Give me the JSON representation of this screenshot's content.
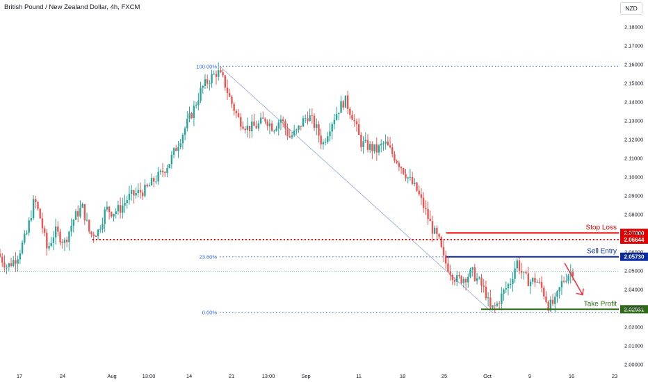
{
  "header": {
    "title": "British Pound / New Zealand Dollar, 4h, FXCM",
    "currency_button": "NZD"
  },
  "chart_data": {
    "type": "candlestick",
    "symbol": "British Pound / New Zealand Dollar",
    "timeframe": "4h",
    "source": "FXCM",
    "ylim": [
      1.995,
      2.187
    ],
    "y_ticks": [
      "2.18000",
      "2.17000",
      "2.16000",
      "2.15000",
      "2.14000",
      "2.13000",
      "2.12000",
      "2.11000",
      "2.10000",
      "2.09000",
      "2.08000",
      "2.07000",
      "2.06000",
      "2.05000",
      "2.04000",
      "2.03000",
      "2.02000",
      "2.01000",
      "2.00000"
    ],
    "x_ticks": [
      "17",
      "24",
      "Aug",
      "13:00",
      "14",
      "21",
      "13:00",
      "Sep",
      "11",
      "18",
      "25",
      "Oct",
      "9",
      "16",
      "23"
    ],
    "price_path": [
      [
        0,
        2.059
      ],
      [
        1.2,
        2.052
      ],
      [
        2.4,
        2.057
      ],
      [
        3.6,
        2.069
      ],
      [
        4.6,
        2.088
      ],
      [
        5.4,
        2.077
      ],
      [
        6.2,
        2.061
      ],
      [
        7.2,
        2.071
      ],
      [
        8.4,
        2.065
      ],
      [
        9.6,
        2.078
      ],
      [
        10.6,
        2.084
      ],
      [
        11.6,
        2.069
      ],
      [
        12.6,
        2.071
      ],
      [
        13.6,
        2.083
      ],
      [
        14.4,
        2.081
      ],
      [
        15.4,
        2.083
      ],
      [
        16.4,
        2.089
      ],
      [
        17.4,
        2.091
      ],
      [
        18.6,
        2.093
      ],
      [
        19.6,
        2.098
      ],
      [
        20.4,
        2.101
      ],
      [
        21.6,
        2.108
      ],
      [
        23,
        2.121
      ],
      [
        24.6,
        2.136
      ],
      [
        25.6,
        2.147
      ],
      [
        26.6,
        2.152
      ],
      [
        27.6,
        2.156
      ],
      [
        28.4,
        2.151
      ],
      [
        29.2,
        2.141
      ],
      [
        30.2,
        2.131
      ],
      [
        31.4,
        2.126
      ],
      [
        32.6,
        2.127
      ],
      [
        33.6,
        2.131
      ],
      [
        34.6,
        2.126
      ],
      [
        35.6,
        2.131
      ],
      [
        36.6,
        2.121
      ],
      [
        37.6,
        2.124
      ],
      [
        38.2,
        2.129
      ],
      [
        39,
        2.133
      ],
      [
        40,
        2.126
      ],
      [
        40.8,
        2.117
      ],
      [
        41.8,
        2.128
      ],
      [
        42.8,
        2.136
      ],
      [
        43.6,
        2.141
      ],
      [
        44.6,
        2.132
      ],
      [
        45.6,
        2.118
      ],
      [
        46.6,
        2.116
      ],
      [
        47.6,
        2.114
      ],
      [
        48.6,
        2.118
      ],
      [
        49.6,
        2.112
      ],
      [
        50.6,
        2.106
      ],
      [
        51.6,
        2.099
      ],
      [
        52.6,
        2.093
      ],
      [
        53.6,
        2.083
      ],
      [
        54.6,
        2.072
      ],
      [
        55.4,
        2.066
      ],
      [
        56,
        2.056
      ],
      [
        56.8,
        2.05
      ],
      [
        57.6,
        2.045
      ],
      [
        58.6,
        2.046
      ],
      [
        59.6,
        2.049
      ],
      [
        60.6,
        2.043
      ],
      [
        61.4,
        2.037
      ],
      [
        61.8,
        2.029
      ],
      [
        62.6,
        2.031
      ],
      [
        63.6,
        2.039
      ],
      [
        64.4,
        2.044
      ],
      [
        65.2,
        2.055
      ],
      [
        66,
        2.047
      ],
      [
        66.8,
        2.044
      ],
      [
        67.6,
        2.045
      ],
      [
        68.4,
        2.04
      ],
      [
        69.2,
        2.031
      ],
      [
        70,
        2.033
      ],
      [
        70.8,
        2.043
      ],
      [
        71.6,
        2.048
      ],
      [
        72.2,
        2.05
      ]
    ],
    "fib_levels": [
      {
        "label": "100.00%",
        "price": 2.1589,
        "x_start": 27.6
      },
      {
        "label": "23.60%",
        "price": 2.0573,
        "x_start": 27.6
      },
      {
        "label": "0.00%",
        "price": 2.0277,
        "x_start": 27.6
      }
    ],
    "support_level": {
      "price": 2.06644,
      "x_start": 11.6,
      "x_end": 78.2
    },
    "current_price_line": 2.0495,
    "trendline": {
      "from": [
        27.6,
        2.1589
      ],
      "to": [
        61.8,
        2.0277
      ]
    },
    "annotations": [
      {
        "label": "Stop Loss",
        "price": 2.07,
        "badge": "2.07000",
        "color": "#e00000"
      },
      {
        "label": "Sell Entry",
        "price": 2.0573,
        "badge": "2.05730",
        "color": "#0c2da0"
      },
      {
        "label": "Take Profit",
        "price": 2.0293,
        "badge": "2.02931",
        "color": "#2e6b16"
      }
    ],
    "support_badge": {
      "price": 2.06644,
      "badge": "2.06644",
      "color": "#e00000"
    },
    "arrow": {
      "from": [
        72.8,
        2.0495
      ],
      "to": [
        75.2,
        2.0385
      ],
      "color": "#f23645"
    },
    "colors": {
      "up": "#26a69a",
      "down": "#ef5350",
      "fib": "#2962ff",
      "support": "#e00000"
    }
  }
}
